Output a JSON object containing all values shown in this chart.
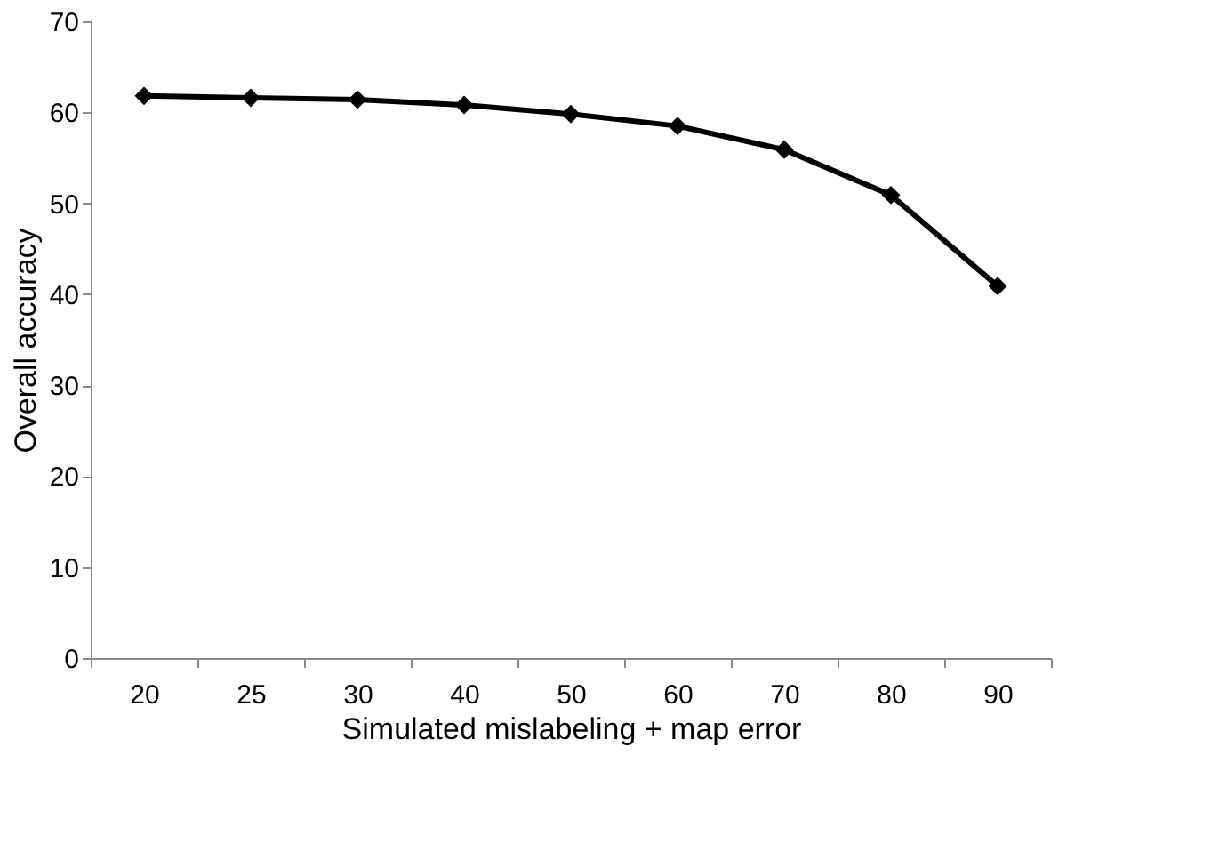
{
  "chart_data": {
    "type": "line",
    "xlabel": "Simulated mislabeling + map error",
    "ylabel": "Overall accuracy",
    "categories": [
      "20",
      "25",
      "30",
      "40",
      "50",
      "60",
      "70",
      "80",
      "90"
    ],
    "series": [
      {
        "color": "#000000",
        "values": [
          61.8,
          61.6,
          61.4,
          60.8,
          59.8,
          58.5,
          55.9,
          50.9,
          40.9
        ]
      }
    ],
    "ylim": [
      0,
      70
    ],
    "yticks": [
      0,
      10,
      20,
      30,
      40,
      50,
      60,
      70
    ],
    "grid": false,
    "marker": "diamond",
    "line_style": "solid"
  }
}
